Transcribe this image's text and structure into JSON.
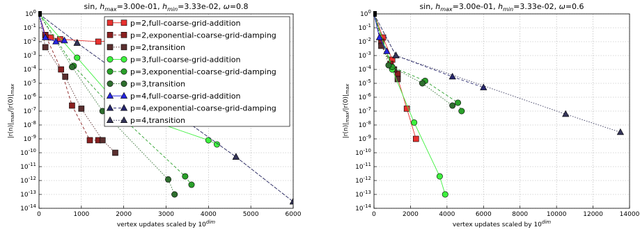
{
  "chart_data": [
    {
      "type": "line",
      "title": "sin, h_max=3.00e-01, h_min=3.33e-02, ω=0.8",
      "title_parts": {
        "prefix": "sin, ",
        "hmax_sym": "h",
        "hmax_sub": "max",
        "hmax_val": "=3.00e-01, ",
        "hmin_sym": "h",
        "hmin_sub": "min",
        "hmin_val": "=3.33e-02, ",
        "omega": "ω",
        "omega_val": "=0.8"
      },
      "xlabel": "vertex updates scaled by 10^dim",
      "xlabel_parts": {
        "text": "vertex updates scaled by 10",
        "sup": "dim"
      },
      "ylabel": "|r(n)|_max/|r(0)|_max",
      "ylabel_parts": {
        "a": "|r(n)|",
        "a_sub": "max",
        "b": "/|r(0)|",
        "b_sub": "max"
      },
      "xlim": [
        0,
        6000
      ],
      "ylim_log10": [
        -14,
        0
      ],
      "y_scale": "log",
      "grid": true,
      "x_ticks": [
        "0",
        "1000",
        "2000",
        "3000",
        "4000",
        "5000",
        "6000"
      ],
      "y_ticks": [
        "10^-14",
        "10^-13",
        "10^-12",
        "10^-11",
        "10^-10",
        "10^-9",
        "10^-8",
        "10^-7",
        "10^-6",
        "10^-5",
        "10^-4",
        "10^-3",
        "10^-2",
        "10^-1",
        "10^0"
      ],
      "legend": {
        "position": "top-right"
      },
      "series": [
        {
          "name": "p=2,full-coarse-grid-addition",
          "color": "#e8312f",
          "marker": "square",
          "points": [
            [
              0,
              1
            ],
            [
              150,
              0.03
            ],
            [
              280,
              0.02
            ],
            [
              500,
              0.015
            ],
            [
              1400,
              0.01
            ],
            [
              1800,
              0.012
            ]
          ]
        },
        {
          "name": "p=2,exponential-coarse-grid-damping",
          "color": "#8b2020",
          "marker": "square",
          "points": [
            [
              0,
              1
            ],
            [
              150,
              0.03
            ],
            [
              520,
              0.0001
            ],
            [
              780,
              2.5e-07
            ],
            [
              1200,
              8e-10
            ],
            [
              1400,
              8e-10
            ]
          ]
        },
        {
          "name": "p=2,transition",
          "color": "#5a2f2f",
          "marker": "square",
          "points": [
            [
              0,
              1
            ],
            [
              150,
              0.004
            ],
            [
              620,
              3e-05
            ],
            [
              1000,
              1.5e-07
            ],
            [
              1500,
              8e-10
            ],
            [
              1800,
              1e-10
            ]
          ]
        },
        {
          "name": "p=3,full-coarse-grid-addition",
          "color": "#3ef03e",
          "marker": "circle",
          "points": [
            [
              0,
              1
            ],
            [
              900,
              0.0007
            ],
            [
              2000,
              1e-07
            ],
            [
              4000,
              8e-10
            ],
            [
              4200,
              4e-10
            ]
          ]
        },
        {
          "name": "p=3,exponential-coarse-grid-damping",
          "color": "#2aa02a",
          "marker": "circle",
          "points": [
            [
              0,
              1
            ],
            [
              820,
              0.00018
            ],
            [
              1800,
              1e-07
            ],
            [
              3450,
              2e-12
            ],
            [
              3600,
              5e-13
            ]
          ]
        },
        {
          "name": "p=3,transition",
          "color": "#2e6e2e",
          "marker": "circle",
          "points": [
            [
              0,
              1
            ],
            [
              780,
              0.00015
            ],
            [
              1500,
              1e-07
            ],
            [
              3050,
              1.2e-12
            ],
            [
              3200,
              1e-13
            ]
          ]
        },
        {
          "name": "p=4,full-coarse-grid-addition",
          "color": "#2525e0",
          "marker": "triangle",
          "points": [
            [
              0,
              1
            ],
            [
              150,
              0.02
            ],
            [
              400,
              0.01
            ],
            [
              600,
              0.012
            ]
          ]
        },
        {
          "name": "p=4,exponential-coarse-grid-damping",
          "color": "#26266e",
          "marker": "triangle",
          "points": [
            [
              0,
              1
            ],
            [
              900,
              0.008
            ],
            [
              4650,
              5e-11
            ],
            [
              6000,
              3e-14
            ]
          ]
        },
        {
          "name": "p=4,transition",
          "color": "#35355a",
          "marker": "triangle",
          "points": [
            [
              0,
              1
            ],
            [
              900,
              0.008
            ],
            [
              4650,
              5e-11
            ],
            [
              6000,
              3e-14
            ]
          ]
        }
      ]
    },
    {
      "type": "line",
      "title": "sin, h_max=3.00e-01, h_min=3.33e-02, ω=0.6",
      "title_parts": {
        "prefix": "sin, ",
        "hmax_sym": "h",
        "hmax_sub": "max",
        "hmax_val": "=3.00e-01, ",
        "hmin_sym": "h",
        "hmin_sub": "min",
        "hmin_val": "=3.33e-02, ",
        "omega": "ω",
        "omega_val": "=0.6"
      },
      "xlabel": "vertex updates scaled by 10^dim",
      "xlabel_parts": {
        "text": "vertex updates scaled by 10",
        "sup": "dim"
      },
      "ylabel": "|r(n)|_max/|r(0)|_max",
      "ylabel_parts": {
        "a": "|r(n)|",
        "a_sub": "max",
        "b": "/|r(0)|",
        "b_sub": "max"
      },
      "xlim": [
        0,
        14000
      ],
      "ylim_log10": [
        -14,
        0
      ],
      "y_scale": "log",
      "grid": true,
      "x_ticks": [
        "0",
        "2000",
        "4000",
        "6000",
        "8000",
        "10000",
        "12000",
        "14000"
      ],
      "y_ticks": [
        "10^-14",
        "10^-13",
        "10^-12",
        "10^-11",
        "10^-10",
        "10^-9",
        "10^-8",
        "10^-7",
        "10^-6",
        "10^-5",
        "10^-4",
        "10^-3",
        "10^-2",
        "10^-1",
        "10^0"
      ],
      "series": [
        {
          "name": "p=2,full-coarse-grid-addition",
          "color": "#e8312f",
          "marker": "square",
          "points": [
            [
              0,
              1
            ],
            [
              500,
              0.02
            ],
            [
              1000,
              0.0005
            ],
            [
              1800,
              1.5e-07
            ],
            [
              2300,
              1e-09
            ]
          ]
        },
        {
          "name": "p=2,exponential-coarse-grid-damping",
          "color": "#8b2020",
          "marker": "square",
          "points": [
            [
              0,
              1
            ],
            [
              400,
              0.01
            ],
            [
              900,
              0.00025
            ],
            [
              1300,
              5e-05
            ]
          ]
        },
        {
          "name": "p=2,transition",
          "color": "#5a2f2f",
          "marker": "square",
          "points": [
            [
              0,
              1
            ],
            [
              400,
              0.005
            ],
            [
              1100,
              0.0001
            ],
            [
              1300,
              2e-05
            ]
          ]
        },
        {
          "name": "p=3,full-coarse-grid-addition",
          "color": "#3ef03e",
          "marker": "circle",
          "points": [
            [
              0,
              1
            ],
            [
              1000,
              0.0001
            ],
            [
              2200,
              1.5e-08
            ],
            [
              3600,
              2e-12
            ],
            [
              3900,
              1e-13
            ]
          ]
        },
        {
          "name": "p=3,exponential-coarse-grid-damping",
          "color": "#2aa02a",
          "marker": "circle",
          "points": [
            [
              0,
              1
            ],
            [
              1000,
              0.00015
            ],
            [
              2800,
              1.5e-05
            ],
            [
              4600,
              4e-07
            ],
            [
              4800,
              1e-07
            ]
          ]
        },
        {
          "name": "p=3,transition",
          "color": "#2e6e2e",
          "marker": "circle",
          "points": [
            [
              0,
              1
            ],
            [
              800,
              0.0002
            ],
            [
              2650,
              1e-05
            ],
            [
              4300,
              2.5e-07
            ]
          ]
        },
        {
          "name": "p=4,full-coarse-grid-addition",
          "color": "#2525e0",
          "marker": "triangle",
          "points": [
            [
              0,
              1
            ],
            [
              300,
              0.02
            ],
            [
              700,
              0.002
            ]
          ]
        },
        {
          "name": "p=4,exponential-coarse-grid-damping",
          "color": "#26266e",
          "marker": "triangle",
          "points": [
            [
              0,
              1
            ],
            [
              1200,
              0.001
            ],
            [
              4300,
              3e-05
            ],
            [
              6000,
              5e-06
            ]
          ]
        },
        {
          "name": "p=4,transition",
          "color": "#35355a",
          "marker": "triangle",
          "points": [
            [
              0,
              1
            ],
            [
              1200,
              0.001
            ],
            [
              10500,
              6e-08
            ],
            [
              13500,
              3e-09
            ]
          ]
        }
      ]
    }
  ]
}
